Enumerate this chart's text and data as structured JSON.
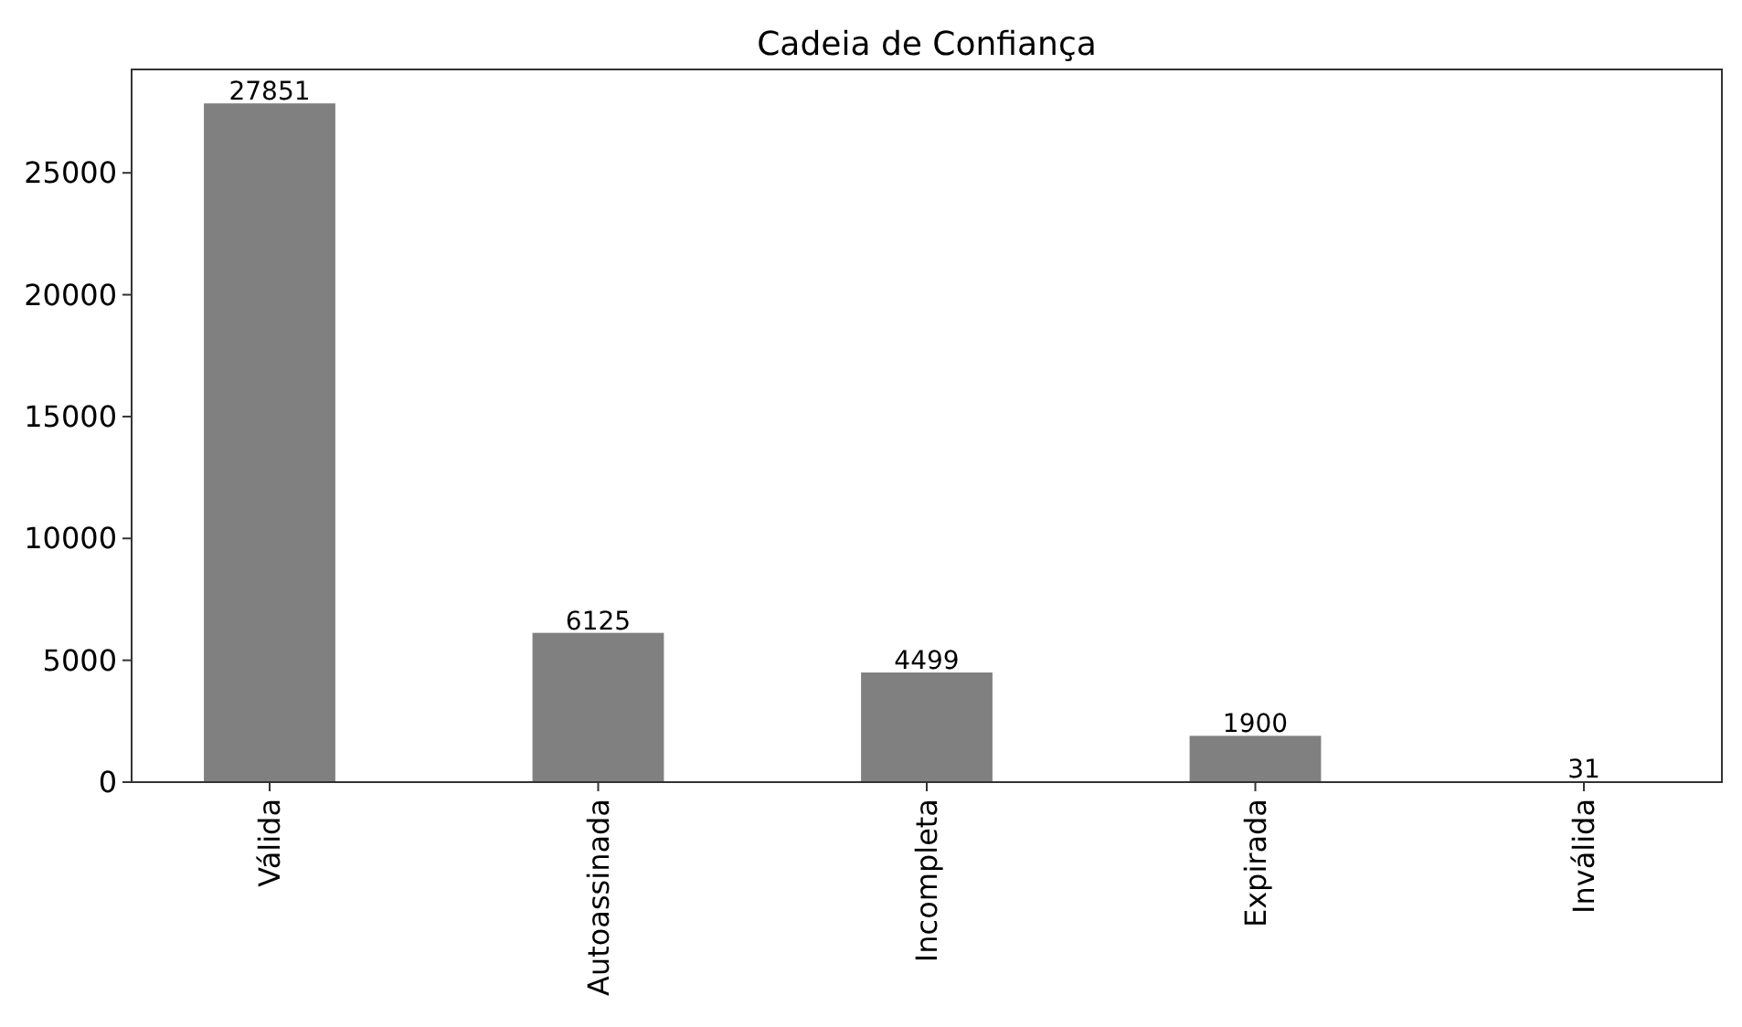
{
  "chart_data": {
    "type": "bar",
    "title": "Cadeia de Confiança",
    "categories": [
      "Válida",
      "Autoassinada",
      "Incompleta",
      "Expirada",
      "Inválida"
    ],
    "values": [
      27851,
      6125,
      4499,
      1900,
      31
    ],
    "color": "#808080",
    "ylim": [
      0,
      29244
    ],
    "yticks": [
      0,
      5000,
      10000,
      15000,
      20000,
      25000
    ],
    "data_labels": true
  }
}
